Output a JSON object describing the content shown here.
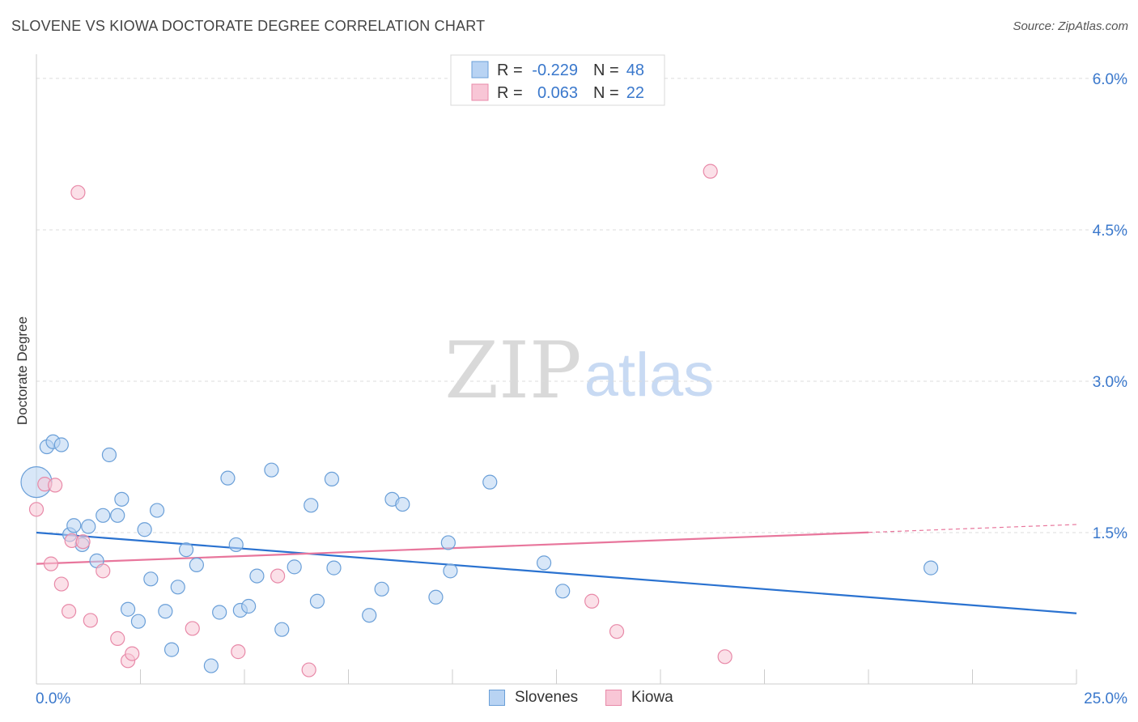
{
  "title": "SLOVENE VS KIOWA DOCTORATE DEGREE CORRELATION CHART",
  "source": "Source: ZipAtlas.com",
  "watermark": {
    "zip": "ZIP",
    "atlas": "atlas"
  },
  "colors": {
    "blue_fill": "#b8d3f3",
    "blue_stroke": "#6a9fd8",
    "blue_line": "#2a72d0",
    "pink_fill": "#f8c6d6",
    "pink_stroke": "#e889a8",
    "pink_line": "#e8769c",
    "axis_text": "#3a78cc",
    "grid": "#dcdcdc"
  },
  "chart_data": {
    "type": "scatter",
    "title": "SLOVENE VS KIOWA DOCTORATE DEGREE CORRELATION CHART",
    "xlabel": "",
    "ylabel": "Doctorate Degree",
    "xlim": [
      0,
      25
    ],
    "ylim": [
      0,
      6.2
    ],
    "x_tick_labels": [
      "0.0%",
      "25.0%"
    ],
    "y_ticks": [
      1.5,
      3.0,
      4.5,
      6.0
    ],
    "y_tick_labels": [
      "1.5%",
      "3.0%",
      "4.5%",
      "6.0%"
    ],
    "legend_stats": [
      {
        "r_label": "R =",
        "r_value": "-0.229",
        "n_label": "N =",
        "n_value": "48"
      },
      {
        "r_label": "R =",
        "r_value": "0.063",
        "n_label": "N =",
        "n_value": "22"
      }
    ],
    "series": [
      {
        "name": "Slovenes",
        "color": "blue",
        "trend": {
          "x0": 0,
          "y0": 1.5,
          "x1": 25,
          "y1": 0.7,
          "solid_until": 25
        },
        "points": [
          {
            "x": 0.0,
            "y": 2.0,
            "big": true
          },
          {
            "x": 0.25,
            "y": 2.35
          },
          {
            "x": 0.4,
            "y": 2.4
          },
          {
            "x": 0.6,
            "y": 2.37
          },
          {
            "x": 0.8,
            "y": 1.48
          },
          {
            "x": 0.9,
            "y": 1.57
          },
          {
            "x": 1.1,
            "y": 1.38
          },
          {
            "x": 1.25,
            "y": 1.56
          },
          {
            "x": 1.45,
            "y": 1.22
          },
          {
            "x": 1.6,
            "y": 1.67
          },
          {
            "x": 1.75,
            "y": 2.27
          },
          {
            "x": 1.95,
            "y": 1.67
          },
          {
            "x": 2.05,
            "y": 1.83
          },
          {
            "x": 2.2,
            "y": 0.74
          },
          {
            "x": 2.45,
            "y": 0.62
          },
          {
            "x": 2.6,
            "y": 1.53
          },
          {
            "x": 2.75,
            "y": 1.04
          },
          {
            "x": 2.9,
            "y": 1.72
          },
          {
            "x": 3.1,
            "y": 0.72
          },
          {
            "x": 3.25,
            "y": 0.34
          },
          {
            "x": 3.4,
            "y": 0.96
          },
          {
            "x": 3.6,
            "y": 1.33
          },
          {
            "x": 3.85,
            "y": 1.18
          },
          {
            "x": 4.2,
            "y": 0.18
          },
          {
            "x": 4.4,
            "y": 0.71
          },
          {
            "x": 4.6,
            "y": 2.04
          },
          {
            "x": 4.8,
            "y": 1.38
          },
          {
            "x": 4.9,
            "y": 0.73
          },
          {
            "x": 5.1,
            "y": 0.77
          },
          {
            "x": 5.3,
            "y": 1.07
          },
          {
            "x": 5.65,
            "y": 2.12
          },
          {
            "x": 5.9,
            "y": 0.54
          },
          {
            "x": 6.2,
            "y": 1.16
          },
          {
            "x": 6.6,
            "y": 1.77
          },
          {
            "x": 6.75,
            "y": 0.82
          },
          {
            "x": 7.1,
            "y": 2.03
          },
          {
            "x": 7.15,
            "y": 1.15
          },
          {
            "x": 8.0,
            "y": 0.68
          },
          {
            "x": 8.3,
            "y": 0.94
          },
          {
            "x": 8.55,
            "y": 1.83
          },
          {
            "x": 8.8,
            "y": 1.78
          },
          {
            "x": 9.6,
            "y": 0.86
          },
          {
            "x": 9.9,
            "y": 1.4
          },
          {
            "x": 9.95,
            "y": 1.12
          },
          {
            "x": 10.9,
            "y": 2.0
          },
          {
            "x": 12.2,
            "y": 1.2
          },
          {
            "x": 12.65,
            "y": 0.92
          },
          {
            "x": 21.5,
            "y": 1.15
          }
        ]
      },
      {
        "name": "Kiowa",
        "color": "pink",
        "trend": {
          "x0": 0,
          "y0": 1.19,
          "x1": 25,
          "y1": 1.58,
          "solid_until": 20.0
        },
        "points": [
          {
            "x": 0.0,
            "y": 1.73
          },
          {
            "x": 0.2,
            "y": 1.98
          },
          {
            "x": 0.45,
            "y": 1.97
          },
          {
            "x": 0.35,
            "y": 1.19
          },
          {
            "x": 0.6,
            "y": 0.99
          },
          {
            "x": 0.78,
            "y": 0.72
          },
          {
            "x": 0.85,
            "y": 1.42
          },
          {
            "x": 1.0,
            "y": 4.87
          },
          {
            "x": 1.12,
            "y": 1.41
          },
          {
            "x": 1.3,
            "y": 0.63
          },
          {
            "x": 1.6,
            "y": 1.12
          },
          {
            "x": 1.95,
            "y": 0.45
          },
          {
            "x": 2.2,
            "y": 0.23
          },
          {
            "x": 2.3,
            "y": 0.3
          },
          {
            "x": 3.75,
            "y": 0.55
          },
          {
            "x": 4.85,
            "y": 0.32
          },
          {
            "x": 5.8,
            "y": 1.07
          },
          {
            "x": 6.55,
            "y": 0.14
          },
          {
            "x": 13.35,
            "y": 0.82
          },
          {
            "x": 13.95,
            "y": 0.52
          },
          {
            "x": 16.2,
            "y": 5.08
          },
          {
            "x": 16.55,
            "y": 0.27
          }
        ]
      }
    ]
  }
}
